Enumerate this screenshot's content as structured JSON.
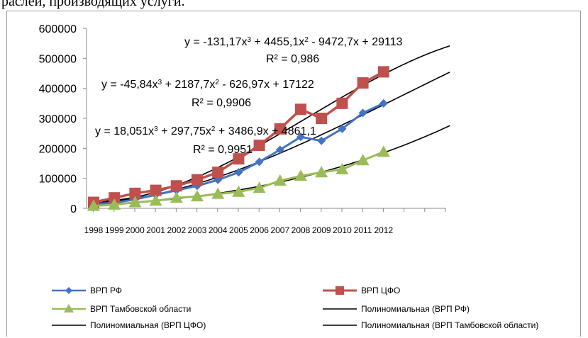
{
  "page_text": "раслей, производящих услуги.",
  "chart_data": {
    "type": "line",
    "categories": [
      "1998",
      "1999",
      "2000",
      "2001",
      "2002",
      "2003",
      "2004",
      "2005",
      "2006",
      "2007",
      "2008",
      "2009",
      "2010",
      "2011",
      "2012"
    ],
    "yticks": [
      "600000",
      "500000",
      "400000",
      "300000",
      "200000",
      "100000",
      "0"
    ],
    "ylim": [
      0,
      600000
    ],
    "grid": false,
    "legend_position": "bottom",
    "series": [
      {
        "name": "ВРП РФ",
        "color": "#4472C4",
        "marker": "diamond",
        "values": [
          15000,
          18000,
          30000,
          45000,
          60000,
          75000,
          95000,
          120000,
          155000,
          195000,
          238000,
          225000,
          265000,
          318000,
          350000
        ]
      },
      {
        "name": "ВРП ЦФО",
        "color": "#C0504D",
        "marker": "square",
        "values": [
          20000,
          35000,
          50000,
          60000,
          75000,
          95000,
          120000,
          165000,
          210000,
          265000,
          330000,
          300000,
          350000,
          418000,
          455000
        ]
      },
      {
        "name": "ВРП Тамбовской области",
        "color": "#9BBB59",
        "marker": "triangle",
        "values": [
          8000,
          12000,
          20000,
          25000,
          35000,
          40000,
          48000,
          55000,
          68000,
          92000,
          108000,
          120000,
          130000,
          160000,
          188000
        ]
      }
    ],
    "trendlines": [
      {
        "name": "Полиномиальная (ВРП РФ)",
        "color": "#000000",
        "equation_parts": [
          "y = -45,84x",
          "3",
          " + 2187,7x",
          "2",
          " - 626,97x + 17122"
        ],
        "r2": "R² = 0,9906",
        "coef": [
          -45.84,
          2187.7,
          -626.97,
          17122
        ]
      },
      {
        "name": "Полиномиальная (ВРП ЦФО)",
        "color": "#000000",
        "equation_parts": [
          "y = -131,17x",
          "3",
          " + 4455,1x",
          "2",
          " - 9472,7x + 29113"
        ],
        "r2": "R² = 0,986",
        "coef": [
          -131.17,
          4455.1,
          -9472.7,
          29113
        ]
      },
      {
        "name": "Полиномиальная (ВРП Тамбовской области)",
        "color": "#000000",
        "equation_parts": [
          "y = 18,051x",
          "3",
          " + 297,75x",
          "2",
          " + 3486,9x + 4861,1"
        ],
        "r2": "R² = 0,9951",
        "coef": [
          18.051,
          297.75,
          3486.9,
          4861.1
        ]
      }
    ]
  }
}
